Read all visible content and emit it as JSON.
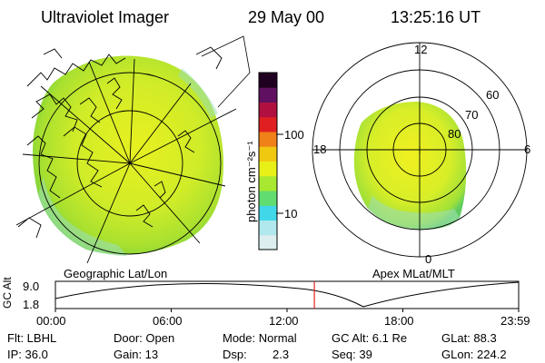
{
  "header": {
    "instrument": "Ultraviolet Imager",
    "date": "29 May 00",
    "time": "13:25:16 UT"
  },
  "left_panel": {
    "caption": "Geographic Lat/Lon"
  },
  "right_panel": {
    "caption": "Apex MLat/MLT",
    "mlt_labels": [
      "12",
      "18",
      "6",
      "0"
    ],
    "lat_labels": [
      "60",
      "70",
      "80"
    ]
  },
  "colorbar": {
    "unit_label": "photon cm⁻²s⁻¹",
    "ticks": [
      "100",
      "10"
    ],
    "colors": [
      "#ddeeee",
      "#b0e8ee",
      "#40d8e8",
      "#60dc70",
      "#a8e830",
      "#e8f018",
      "#f0c810",
      "#f08018",
      "#e02020",
      "#b01040",
      "#601060",
      "#200020"
    ]
  },
  "timeline": {
    "axis_label": "GC Alt",
    "y_ticks": [
      "9.0",
      "1.8"
    ],
    "x_ticks": [
      "00:00",
      "06:00",
      "12:00",
      "18:00",
      "23:59"
    ],
    "marker_time": "13:25:16",
    "marker_fraction": 0.559,
    "marker_color": "#e02020"
  },
  "footer": {
    "filter": "Flt: LBHL",
    "ip": "IP: 36.0",
    "door": "Door: Open",
    "gain": "Gain: 13",
    "mode": "Mode: Normal",
    "dsp_label": "Dsp:",
    "dsp_value": "2.3",
    "gc_alt": "GC Alt: 6.1 Re",
    "seq": "Seq: 39",
    "glat": "GLat: 88.3",
    "glon": "GLon: 224.2"
  },
  "colors": {
    "image_green": "#a8e030",
    "image_yellow": "#e8f020",
    "image_edge": "#50c860"
  }
}
